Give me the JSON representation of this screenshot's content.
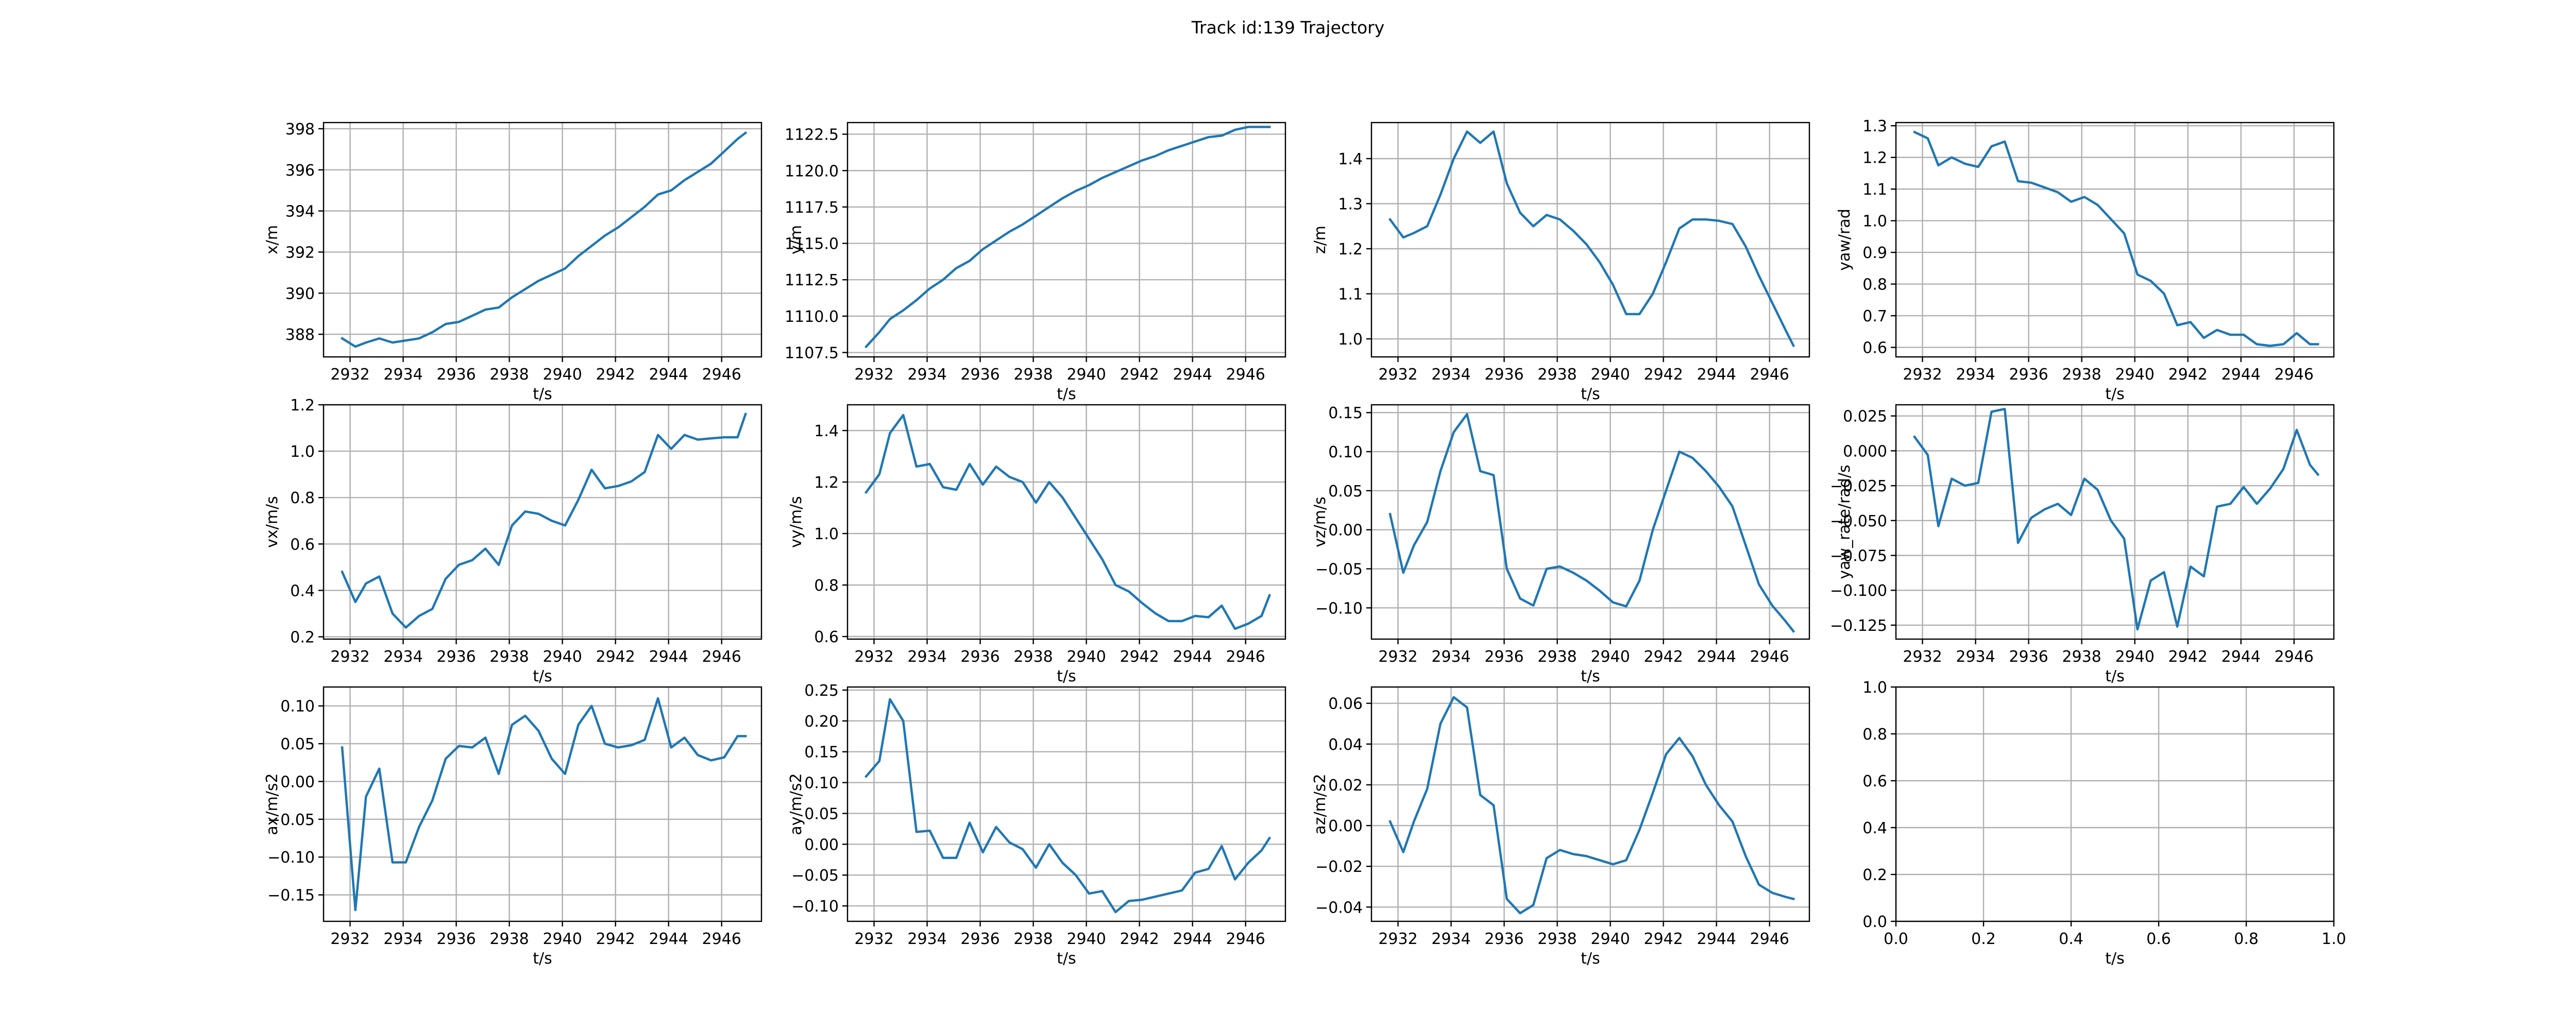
{
  "figure": {
    "title": "Track id:139 Trajectory",
    "grid": true,
    "line_color": "#1f77b4"
  },
  "chart_data": [
    {
      "type": "line",
      "xlabel": "t/s",
      "ylabel": "x/m",
      "xlim": [
        2931.0,
        2947.5
      ],
      "xticks": [
        2932,
        2934,
        2936,
        2938,
        2940,
        2942,
        2944,
        2946
      ],
      "ylim": [
        386.9,
        398.3
      ],
      "yticks": [
        388,
        390,
        392,
        394,
        396,
        398
      ],
      "x": [
        2931.7,
        2932.2,
        2932.6,
        2933.1,
        2933.6,
        2934.1,
        2934.6,
        2935.1,
        2935.6,
        2936.1,
        2936.6,
        2937.1,
        2937.6,
        2938.1,
        2938.6,
        2939.1,
        2939.6,
        2940.1,
        2940.6,
        2941.1,
        2941.6,
        2942.1,
        2942.6,
        2943.1,
        2943.6,
        2944.1,
        2944.6,
        2945.1,
        2945.6,
        2946.1,
        2946.6,
        2946.9
      ],
      "y": [
        387.8,
        387.4,
        387.6,
        387.8,
        387.6,
        387.7,
        387.8,
        388.1,
        388.5,
        388.6,
        388.9,
        389.2,
        389.3,
        389.8,
        390.2,
        390.6,
        390.9,
        391.2,
        391.8,
        392.3,
        392.8,
        393.2,
        393.7,
        394.2,
        394.8,
        395.0,
        395.5,
        395.9,
        396.3,
        396.9,
        397.5,
        397.8
      ]
    },
    {
      "type": "line",
      "xlabel": "t/s",
      "ylabel": "y/m",
      "xlim": [
        2931.0,
        2947.5
      ],
      "xticks": [
        2932,
        2934,
        2936,
        2938,
        2940,
        2942,
        2944,
        2946
      ],
      "ylim": [
        1107.2,
        1123.3
      ],
      "yticks": [
        1107.5,
        1110.0,
        1112.5,
        1115.0,
        1117.5,
        1120.0,
        1122.5
      ],
      "x": [
        2931.7,
        2932.2,
        2932.6,
        2933.1,
        2933.6,
        2934.1,
        2934.6,
        2935.1,
        2935.6,
        2936.1,
        2936.6,
        2937.1,
        2937.6,
        2938.1,
        2938.6,
        2939.1,
        2939.6,
        2940.1,
        2940.6,
        2941.1,
        2941.6,
        2942.1,
        2942.6,
        2943.1,
        2943.6,
        2944.1,
        2944.6,
        2945.1,
        2945.6,
        2946.1,
        2946.6,
        2946.9
      ],
      "y": [
        1107.9,
        1108.9,
        1109.8,
        1110.4,
        1111.1,
        1111.9,
        1112.5,
        1113.3,
        1113.8,
        1114.6,
        1115.2,
        1115.8,
        1116.3,
        1116.9,
        1117.5,
        1118.1,
        1118.6,
        1119.0,
        1119.5,
        1119.9,
        1120.3,
        1120.7,
        1121.0,
        1121.4,
        1121.7,
        1122.0,
        1122.3,
        1122.4,
        1122.8,
        1123.0,
        1123.0,
        1123.0
      ]
    },
    {
      "type": "line",
      "xlabel": "t/s",
      "ylabel": "z/m",
      "xlim": [
        2931.0,
        2947.5
      ],
      "xticks": [
        2932,
        2934,
        2936,
        2938,
        2940,
        2942,
        2944,
        2946
      ],
      "ylim": [
        0.96,
        1.48
      ],
      "yticks": [
        1.0,
        1.1,
        1.2,
        1.3,
        1.4
      ],
      "x": [
        2931.7,
        2932.2,
        2932.6,
        2933.1,
        2933.6,
        2934.1,
        2934.6,
        2935.1,
        2935.6,
        2936.1,
        2936.6,
        2937.1,
        2937.6,
        2938.1,
        2938.6,
        2939.1,
        2939.6,
        2940.1,
        2940.6,
        2941.1,
        2941.6,
        2942.1,
        2942.6,
        2943.1,
        2943.6,
        2944.1,
        2944.6,
        2945.1,
        2945.6,
        2946.1,
        2946.6,
        2946.9
      ],
      "y": [
        1.265,
        1.225,
        1.235,
        1.25,
        1.32,
        1.4,
        1.46,
        1.435,
        1.46,
        1.345,
        1.28,
        1.25,
        1.275,
        1.265,
        1.24,
        1.21,
        1.17,
        1.12,
        1.055,
        1.055,
        1.1,
        1.17,
        1.245,
        1.265,
        1.265,
        1.262,
        1.255,
        1.205,
        1.14,
        1.08,
        1.02,
        0.985
      ]
    },
    {
      "type": "line",
      "xlabel": "t/s",
      "ylabel": "yaw/rad",
      "xlim": [
        2931.0,
        2947.5
      ],
      "xticks": [
        2932,
        2934,
        2936,
        2938,
        2940,
        2942,
        2944,
        2946
      ],
      "ylim": [
        0.57,
        1.31
      ],
      "yticks": [
        0.6,
        0.7,
        0.8,
        0.9,
        1.0,
        1.1,
        1.2,
        1.3
      ],
      "x": [
        2931.7,
        2932.2,
        2932.6,
        2933.1,
        2933.6,
        2934.1,
        2934.6,
        2935.1,
        2935.6,
        2936.1,
        2936.6,
        2937.1,
        2937.6,
        2938.1,
        2938.6,
        2939.1,
        2939.6,
        2940.1,
        2940.6,
        2941.1,
        2941.6,
        2942.1,
        2942.6,
        2943.1,
        2943.6,
        2944.1,
        2944.6,
        2945.1,
        2945.6,
        2946.1,
        2946.6,
        2946.9
      ],
      "y": [
        1.28,
        1.26,
        1.175,
        1.2,
        1.18,
        1.17,
        1.235,
        1.25,
        1.125,
        1.12,
        1.105,
        1.09,
        1.06,
        1.075,
        1.05,
        1.005,
        0.96,
        0.83,
        0.81,
        0.77,
        0.67,
        0.68,
        0.63,
        0.655,
        0.64,
        0.64,
        0.61,
        0.605,
        0.61,
        0.645,
        0.61,
        0.61
      ]
    },
    {
      "type": "line",
      "xlabel": "t/s",
      "ylabel": "vx/m/s",
      "xlim": [
        2931.0,
        2947.5
      ],
      "xticks": [
        2932,
        2934,
        2936,
        2938,
        2940,
        2942,
        2944,
        2946
      ],
      "ylim": [
        0.19,
        1.2
      ],
      "yticks": [
        0.2,
        0.4,
        0.6,
        0.8,
        1.0,
        1.2
      ],
      "x": [
        2931.7,
        2932.2,
        2932.6,
        2933.1,
        2933.6,
        2934.1,
        2934.6,
        2935.1,
        2935.6,
        2936.1,
        2936.6,
        2937.1,
        2937.6,
        2938.1,
        2938.6,
        2939.1,
        2939.6,
        2940.1,
        2940.6,
        2941.1,
        2941.6,
        2942.1,
        2942.6,
        2943.1,
        2943.6,
        2944.1,
        2944.6,
        2945.1,
        2945.6,
        2946.1,
        2946.6,
        2946.9
      ],
      "y": [
        0.48,
        0.35,
        0.43,
        0.46,
        0.3,
        0.24,
        0.29,
        0.32,
        0.45,
        0.51,
        0.53,
        0.58,
        0.51,
        0.68,
        0.74,
        0.73,
        0.7,
        0.68,
        0.79,
        0.92,
        0.84,
        0.85,
        0.87,
        0.91,
        1.07,
        1.01,
        1.07,
        1.05,
        1.055,
        1.06,
        1.06,
        1.16
      ]
    },
    {
      "type": "line",
      "xlabel": "t/s",
      "ylabel": "vy/m/s",
      "xlim": [
        2931.0,
        2947.5
      ],
      "xticks": [
        2932,
        2934,
        2936,
        2938,
        2940,
        2942,
        2944,
        2946
      ],
      "ylim": [
        0.59,
        1.5
      ],
      "yticks": [
        0.6,
        0.8,
        1.0,
        1.2,
        1.4
      ],
      "x": [
        2931.7,
        2932.2,
        2932.6,
        2933.1,
        2933.6,
        2934.1,
        2934.6,
        2935.1,
        2935.6,
        2936.1,
        2936.6,
        2937.1,
        2937.6,
        2938.1,
        2938.6,
        2939.1,
        2939.6,
        2940.1,
        2940.6,
        2941.1,
        2941.6,
        2942.1,
        2942.6,
        2943.1,
        2943.6,
        2944.1,
        2944.6,
        2945.1,
        2945.6,
        2946.1,
        2946.6,
        2946.9
      ],
      "y": [
        1.16,
        1.23,
        1.39,
        1.46,
        1.26,
        1.27,
        1.18,
        1.17,
        1.27,
        1.19,
        1.26,
        1.22,
        1.2,
        1.12,
        1.2,
        1.14,
        1.06,
        0.98,
        0.9,
        0.8,
        0.775,
        0.73,
        0.69,
        0.66,
        0.66,
        0.68,
        0.675,
        0.72,
        0.63,
        0.65,
        0.68,
        0.76
      ]
    },
    {
      "type": "line",
      "xlabel": "t/s",
      "ylabel": "vz/m/s",
      "xlim": [
        2931.0,
        2947.5
      ],
      "xticks": [
        2932,
        2934,
        2936,
        2938,
        2940,
        2942,
        2944,
        2946
      ],
      "ylim": [
        -0.14,
        0.16
      ],
      "yticks": [
        -0.1,
        -0.05,
        0.0,
        0.05,
        0.1,
        0.15
      ],
      "x": [
        2931.7,
        2932.2,
        2932.6,
        2933.1,
        2933.6,
        2934.1,
        2934.6,
        2935.1,
        2935.6,
        2936.1,
        2936.6,
        2937.1,
        2937.6,
        2938.1,
        2938.6,
        2939.1,
        2939.6,
        2940.1,
        2940.6,
        2941.1,
        2941.6,
        2942.1,
        2942.6,
        2943.1,
        2943.6,
        2944.1,
        2944.6,
        2945.1,
        2945.6,
        2946.1,
        2946.6,
        2946.9
      ],
      "y": [
        0.02,
        -0.055,
        -0.02,
        0.01,
        0.075,
        0.125,
        0.148,
        0.075,
        0.07,
        -0.05,
        -0.088,
        -0.097,
        -0.05,
        -0.047,
        -0.055,
        -0.065,
        -0.078,
        -0.093,
        -0.098,
        -0.065,
        0.0,
        0.05,
        0.1,
        0.092,
        0.075,
        0.055,
        0.03,
        -0.02,
        -0.07,
        -0.097,
        -0.117,
        -0.13
      ]
    },
    {
      "type": "line",
      "xlabel": "t/s",
      "ylabel": "yaw_rate/rad/s",
      "xlim": [
        2931.0,
        2947.5
      ],
      "xticks": [
        2932,
        2934,
        2936,
        2938,
        2940,
        2942,
        2944,
        2946
      ],
      "ylim": [
        -0.135,
        0.033
      ],
      "yticks": [
        -0.125,
        -0.1,
        -0.075,
        -0.05,
        -0.025,
        0.0,
        0.025
      ],
      "x": [
        2931.7,
        2932.2,
        2932.6,
        2933.1,
        2933.6,
        2934.1,
        2934.6,
        2935.1,
        2935.6,
        2936.1,
        2936.6,
        2937.1,
        2937.6,
        2938.1,
        2938.6,
        2939.1,
        2939.6,
        2940.1,
        2940.6,
        2941.1,
        2941.6,
        2942.1,
        2942.6,
        2943.1,
        2943.6,
        2944.1,
        2944.6,
        2945.1,
        2945.6,
        2946.1,
        2946.6,
        2946.9
      ],
      "y": [
        0.01,
        -0.003,
        -0.054,
        -0.02,
        -0.025,
        -0.023,
        0.028,
        0.03,
        -0.066,
        -0.048,
        -0.042,
        -0.038,
        -0.046,
        -0.02,
        -0.028,
        -0.05,
        -0.063,
        -0.128,
        -0.093,
        -0.087,
        -0.126,
        -0.083,
        -0.09,
        -0.04,
        -0.038,
        -0.026,
        -0.038,
        -0.027,
        -0.013,
        0.015,
        -0.01,
        -0.017
      ]
    },
    {
      "type": "line",
      "xlabel": "t/s",
      "ylabel": "ax/m/s2",
      "xlim": [
        2931.0,
        2947.5
      ],
      "xticks": [
        2932,
        2934,
        2936,
        2938,
        2940,
        2942,
        2944,
        2946
      ],
      "ylim": [
        -0.185,
        0.125
      ],
      "yticks": [
        -0.15,
        -0.1,
        -0.05,
        0.0,
        0.05,
        0.1
      ],
      "x": [
        2931.7,
        2932.2,
        2932.6,
        2933.1,
        2933.6,
        2934.1,
        2934.6,
        2935.1,
        2935.6,
        2936.1,
        2936.6,
        2937.1,
        2937.6,
        2938.1,
        2938.6,
        2939.1,
        2939.6,
        2940.1,
        2940.6,
        2941.1,
        2941.6,
        2942.1,
        2942.6,
        2943.1,
        2943.6,
        2944.1,
        2944.6,
        2945.1,
        2945.6,
        2946.1,
        2946.6,
        2946.9
      ],
      "y": [
        0.045,
        -0.17,
        -0.02,
        0.017,
        -0.107,
        -0.107,
        -0.06,
        -0.025,
        0.03,
        0.047,
        0.045,
        0.058,
        0.01,
        0.075,
        0.087,
        0.067,
        0.03,
        0.01,
        0.075,
        0.1,
        0.05,
        0.045,
        0.048,
        0.055,
        0.11,
        0.045,
        0.058,
        0.035,
        0.028,
        0.032,
        0.06,
        0.06
      ]
    },
    {
      "type": "line",
      "xlabel": "t/s",
      "ylabel": "ay/m/s2",
      "xlim": [
        2931.0,
        2947.5
      ],
      "xticks": [
        2932,
        2934,
        2936,
        2938,
        2940,
        2942,
        2944,
        2946
      ],
      "ylim": [
        -0.125,
        0.255
      ],
      "yticks": [
        -0.1,
        -0.05,
        0.0,
        0.05,
        0.1,
        0.15,
        0.2,
        0.25
      ],
      "x": [
        2931.7,
        2932.2,
        2932.6,
        2933.1,
        2933.6,
        2934.1,
        2934.6,
        2935.1,
        2935.6,
        2936.1,
        2936.6,
        2937.1,
        2937.6,
        2938.1,
        2938.6,
        2939.1,
        2939.6,
        2940.1,
        2940.6,
        2941.1,
        2941.6,
        2942.1,
        2942.6,
        2943.1,
        2943.6,
        2944.1,
        2944.6,
        2945.1,
        2945.6,
        2946.1,
        2946.6,
        2946.9
      ],
      "y": [
        0.11,
        0.135,
        0.235,
        0.2,
        0.02,
        0.022,
        -0.022,
        -0.022,
        0.035,
        -0.013,
        0.028,
        0.003,
        -0.008,
        -0.038,
        0.0,
        -0.03,
        -0.05,
        -0.08,
        -0.076,
        -0.11,
        -0.092,
        -0.09,
        -0.085,
        -0.08,
        -0.075,
        -0.046,
        -0.04,
        -0.003,
        -0.057,
        -0.03,
        -0.01,
        0.01
      ]
    },
    {
      "type": "line",
      "xlabel": "t/s",
      "ylabel": "az/m/s2",
      "xlim": [
        2931.0,
        2947.5
      ],
      "xticks": [
        2932,
        2934,
        2936,
        2938,
        2940,
        2942,
        2944,
        2946
      ],
      "ylim": [
        -0.047,
        0.068
      ],
      "yticks": [
        -0.04,
        -0.02,
        0.0,
        0.02,
        0.04,
        0.06
      ],
      "x": [
        2931.7,
        2932.2,
        2932.6,
        2933.1,
        2933.6,
        2934.1,
        2934.6,
        2935.1,
        2935.6,
        2936.1,
        2936.6,
        2937.1,
        2937.6,
        2938.1,
        2938.6,
        2939.1,
        2939.6,
        2940.1,
        2940.6,
        2941.1,
        2941.6,
        2942.1,
        2942.6,
        2943.1,
        2943.6,
        2944.1,
        2944.6,
        2945.1,
        2945.6,
        2946.1,
        2946.6,
        2946.9
      ],
      "y": [
        0.002,
        -0.013,
        0.002,
        0.018,
        0.05,
        0.063,
        0.058,
        0.015,
        0.01,
        -0.036,
        -0.043,
        -0.039,
        -0.016,
        -0.012,
        -0.014,
        -0.015,
        -0.017,
        -0.019,
        -0.017,
        -0.002,
        0.016,
        0.035,
        0.043,
        0.034,
        0.02,
        0.01,
        0.002,
        -0.015,
        -0.029,
        -0.033,
        -0.035,
        -0.036
      ]
    },
    {
      "type": "line",
      "xlabel": "t/s",
      "ylabel": "",
      "xlim": [
        0.0,
        1.0
      ],
      "xticks": [
        0.0,
        0.2,
        0.4,
        0.6,
        0.8,
        1.0
      ],
      "xtick_labels": [
        "0.0",
        "0.2",
        "0.4",
        "0.6",
        "0.8",
        "1.0"
      ],
      "ylim": [
        0.0,
        1.0
      ],
      "yticks": [
        0.0,
        0.2,
        0.4,
        0.6,
        0.8,
        1.0
      ],
      "ytick_labels": [
        "0.0",
        "0.2",
        "0.4",
        "0.6",
        "0.8",
        "1.0"
      ],
      "x": [],
      "y": []
    }
  ]
}
